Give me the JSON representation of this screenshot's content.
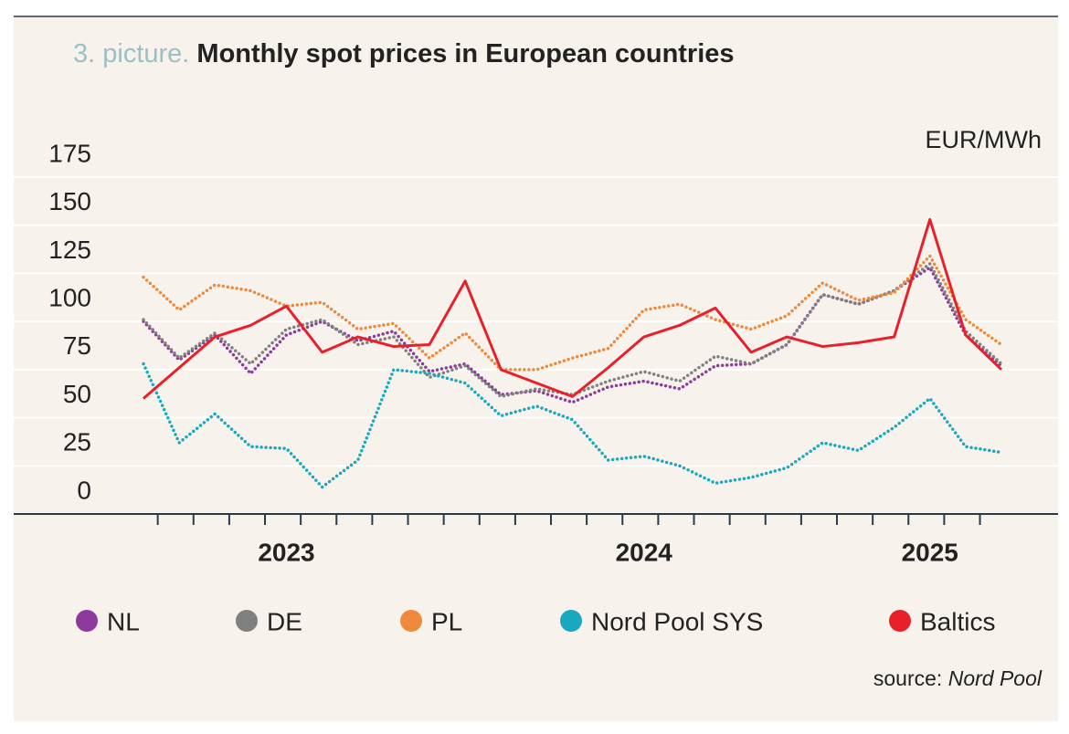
{
  "chart_data": {
    "type": "line",
    "title_prefix": "3. picture.",
    "title": "Monthly spot prices in European countries",
    "unit": "EUR/MWh",
    "source_label": "source:",
    "source": "Nord Pool",
    "categories": [
      null,
      null,
      null,
      null,
      "2023",
      null,
      null,
      null,
      null,
      null,
      null,
      null,
      null,
      null,
      "2024",
      null,
      null,
      null,
      null,
      null,
      null,
      null,
      "2025",
      null,
      null
    ],
    "ylim": [
      0,
      175
    ],
    "yticks": [
      0,
      25,
      50,
      75,
      100,
      125,
      150,
      175
    ],
    "grid": true,
    "series": [
      {
        "name": "NL",
        "color": "#8e3a9d",
        "style": "dotted",
        "values": [
          100,
          80,
          93,
          73,
          93,
          100,
          90,
          95,
          74,
          78,
          62,
          64,
          58,
          66,
          69,
          65,
          77,
          78,
          88,
          114,
          109,
          116,
          128,
          93,
          77
        ]
      },
      {
        "name": "DE",
        "color": "#808080",
        "style": "dotted",
        "values": [
          101,
          81,
          94,
          78,
          96,
          101,
          88,
          92,
          71,
          77,
          61,
          65,
          62,
          69,
          74,
          69,
          82,
          78,
          88,
          114,
          109,
          116,
          130,
          95,
          78
        ]
      },
      {
        "name": "PL",
        "color": "#ef8a3c",
        "style": "dotted",
        "values": [
          123,
          106,
          119,
          116,
          108,
          110,
          96,
          99,
          81,
          94,
          75,
          75,
          81,
          86,
          106,
          109,
          101,
          96,
          103,
          120,
          111,
          115,
          134,
          101,
          88
        ]
      },
      {
        "name": "Nord Pool SYS",
        "color": "#1aa8c0",
        "style": "dotted",
        "values": [
          78,
          37,
          52,
          35,
          34,
          14,
          28,
          75,
          73,
          68,
          51,
          56,
          49,
          28,
          30,
          25,
          16,
          19,
          24,
          37,
          33,
          45,
          60,
          35,
          32
        ]
      },
      {
        "name": "Baltics",
        "color": "#e8202a",
        "style": "solid",
        "values": [
          60,
          76,
          92,
          98,
          108,
          84,
          92,
          87,
          88,
          121,
          75,
          68,
          61,
          76,
          92,
          98,
          107,
          84,
          92,
          87,
          89,
          92,
          153,
          93,
          75
        ]
      }
    ]
  }
}
